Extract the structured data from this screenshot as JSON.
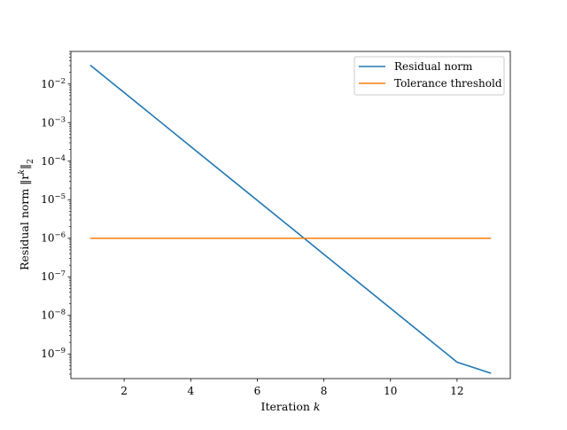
{
  "chart_data": {
    "type": "line",
    "title": "",
    "xlabel": "Iteration ",
    "xlabel_var": "k",
    "ylabel": "Residual norm ",
    "ylabel_math": "‖r",
    "ylabel_sup": "k",
    "ylabel_close": "‖",
    "ylabel_sub": "2",
    "xlim": [
      0.4,
      13.6
    ],
    "yscale": "log",
    "ylim": [
      2.3e-10,
      0.07
    ],
    "grid": false,
    "legend_position": "top-right",
    "x_ticks": [
      2,
      4,
      6,
      8,
      10,
      12
    ],
    "x_tick_labels": [
      "2",
      "4",
      "6",
      "8",
      "10",
      "12"
    ],
    "y_ticks": [
      1e-09,
      1e-08,
      1e-07,
      1e-06,
      1e-05,
      0.0001,
      0.001,
      0.01
    ],
    "y_tick_bases": [
      "10",
      "10",
      "10",
      "10",
      "10",
      "10",
      "10",
      "10"
    ],
    "y_tick_exponents": [
      "−9",
      "−8",
      "−7",
      "−6",
      "−5",
      "−4",
      "−3",
      "−2"
    ],
    "series": [
      {
        "name": "Residual norm",
        "color": "#1f77b4",
        "x": [
          1,
          2,
          3,
          4,
          5,
          6,
          7,
          8,
          9,
          10,
          11,
          12,
          13
        ],
        "y": [
          0.03,
          0.006,
          0.0012,
          0.00024,
          4.8e-05,
          9.6e-06,
          1.92e-06,
          3.84e-07,
          7.68e-08,
          1.54e-08,
          3.07e-09,
          6.14e-10,
          3.2e-10
        ]
      },
      {
        "name": "Tolerance threshold",
        "color": "#ff7f0e",
        "x": [
          1,
          13
        ],
        "y": [
          1e-06,
          1e-06
        ]
      }
    ]
  }
}
